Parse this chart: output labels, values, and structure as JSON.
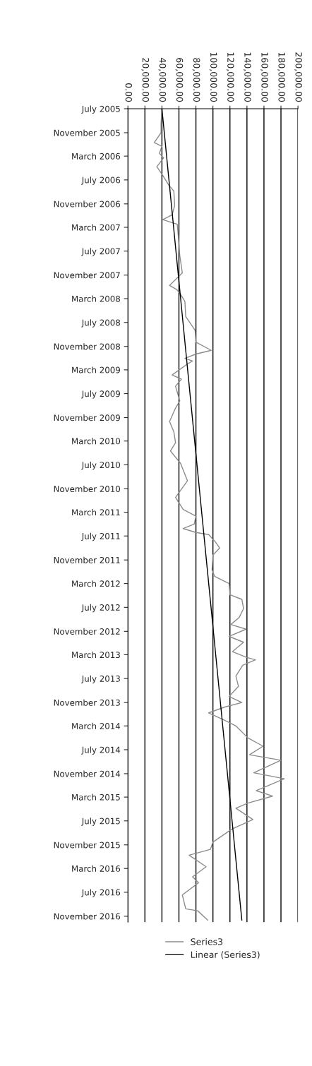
{
  "chart_data": {
    "type": "line",
    "orientation": "horizontal",
    "series": [
      {
        "name": "Series3",
        "color": "#8c8c8c",
        "x": [
          "2005-07-01",
          "2005-09-13",
          "2005-11-01",
          "2005-12-21",
          "2006-01-10",
          "2006-02-15",
          "2006-03-10",
          "2006-04-24",
          "2006-06-01",
          "2006-07-27",
          "2006-08-27",
          "2006-11-10",
          "2006-12-27",
          "2007-01-21",
          "2007-02-13",
          "2007-04-01",
          "2007-07-24",
          "2007-10-21",
          "2007-12-24",
          "2008-01-13",
          "2008-02-01",
          "2008-03-15",
          "2008-06-01",
          "2008-08-10",
          "2008-10-10",
          "2008-11-21",
          "2008-12-10",
          "2009-01-01",
          "2009-01-15",
          "2009-01-27",
          "2009-03-27",
          "2009-04-18",
          "2009-05-24",
          "2009-08-07",
          "2009-09-13",
          "2009-11-21",
          "2010-01-13",
          "2010-03-10",
          "2010-04-21",
          "2010-06-24",
          "2010-09-21",
          "2010-12-15",
          "2011-02-15",
          "2011-03-21",
          "2011-05-01",
          "2011-05-24",
          "2011-06-13",
          "2011-06-24",
          "2011-08-01",
          "2011-09-01",
          "2011-10-07",
          "2011-12-21",
          "2012-01-24",
          "2012-03-01",
          "2012-04-27",
          "2012-05-21",
          "2012-07-07",
          "2012-08-21",
          "2012-09-27",
          "2012-10-21",
          "2012-11-27",
          "2012-12-27",
          "2013-02-13",
          "2013-03-15",
          "2013-03-27",
          "2013-04-24",
          "2013-06-18",
          "2013-08-10",
          "2013-10-01",
          "2013-11-01",
          "2013-11-24",
          "2013-12-24",
          "2014-02-07",
          "2014-03-01",
          "2014-05-01",
          "2014-06-13",
          "2014-07-27",
          "2014-08-24",
          "2014-10-27",
          "2014-11-27",
          "2015-01-27",
          "2015-02-24",
          "2015-04-01",
          "2015-04-27",
          "2015-06-24",
          "2015-08-13",
          "2015-10-18",
          "2015-11-24",
          "2015-12-24",
          "2016-02-21",
          "2016-04-13",
          "2016-05-13",
          "2016-07-15",
          "2016-09-24",
          "2016-10-04",
          "2016-11-21"
        ],
        "values": [
          40000,
          39000,
          39000,
          31000,
          40000,
          37000,
          42000,
          34000,
          40000,
          48000,
          54000,
          55000,
          52000,
          41000,
          58000,
          59000,
          61000,
          64000,
          49000,
          57000,
          61000,
          67000,
          68000,
          79000,
          80000,
          98000,
          80000,
          67000,
          76000,
          71000,
          52000,
          63000,
          56000,
          61000,
          56000,
          49000,
          54000,
          56000,
          50000,
          62000,
          70000,
          56000,
          65000,
          80000,
          78000,
          65000,
          80000,
          95000,
          103000,
          108000,
          100000,
          99000,
          102000,
          119000,
          120000,
          134000,
          136000,
          131000,
          121000,
          139000,
          119000,
          136000,
          123000,
          140000,
          150000,
          135000,
          127000,
          130000,
          119000,
          134000,
          114000,
          95000,
          117000,
          127000,
          141000,
          159000,
          143000,
          180000,
          148000,
          184000,
          151000,
          170000,
          141000,
          127000,
          147000,
          122000,
          100000,
          97000,
          72000,
          92000,
          76000,
          83000,
          64000,
          68000,
          82000,
          94000
        ]
      },
      {
        "name": "Linear (Series3)",
        "color": "#000000",
        "x": [
          "2005-07-01",
          "2016-11-21"
        ],
        "values": [
          40000,
          134000
        ]
      }
    ],
    "xlim": [
      0,
      200000
    ],
    "xticks": [
      {
        "value": 0,
        "label": "0.00"
      },
      {
        "value": 20000,
        "label": "20,000.00"
      },
      {
        "value": 40000,
        "label": "40,000.00"
      },
      {
        "value": 60000,
        "label": "60,000.00"
      },
      {
        "value": 80000,
        "label": "80,000.00"
      },
      {
        "value": 100000,
        "label": "100,000.00"
      },
      {
        "value": 120000,
        "label": "120,000.00"
      },
      {
        "value": 140000,
        "label": "140,000.00"
      },
      {
        "value": 160000,
        "label": "160,000.00"
      },
      {
        "value": 180000,
        "label": "180,000.00"
      },
      {
        "value": 200000,
        "label": "200,000.00"
      }
    ],
    "ylim": [
      "2016-12-01",
      "2005-07-01"
    ],
    "yticks": [
      {
        "value": "2005-07",
        "label": "July 2005"
      },
      {
        "value": "2005-11",
        "label": "November 2005"
      },
      {
        "value": "2006-03",
        "label": "March 2006"
      },
      {
        "value": "2006-07",
        "label": "July 2006"
      },
      {
        "value": "2006-11",
        "label": "November 2006"
      },
      {
        "value": "2007-03",
        "label": "March 2007"
      },
      {
        "value": "2007-07",
        "label": "July 2007"
      },
      {
        "value": "2007-11",
        "label": "November 2007"
      },
      {
        "value": "2008-03",
        "label": "March 2008"
      },
      {
        "value": "2008-07",
        "label": "July 2008"
      },
      {
        "value": "2008-11",
        "label": "November 2008"
      },
      {
        "value": "2009-03",
        "label": "March 2009"
      },
      {
        "value": "2009-07",
        "label": "July 2009"
      },
      {
        "value": "2009-11",
        "label": "November 2009"
      },
      {
        "value": "2010-03",
        "label": "March 2010"
      },
      {
        "value": "2010-07",
        "label": "July 2010"
      },
      {
        "value": "2010-11",
        "label": "November 2010"
      },
      {
        "value": "2011-03",
        "label": "March 2011"
      },
      {
        "value": "2011-07",
        "label": "July 2011"
      },
      {
        "value": "2011-11",
        "label": "November 2011"
      },
      {
        "value": "2012-03",
        "label": "March 2012"
      },
      {
        "value": "2012-07",
        "label": "July 2012"
      },
      {
        "value": "2012-11",
        "label": "November 2012"
      },
      {
        "value": "2013-03",
        "label": "March 2013"
      },
      {
        "value": "2013-07",
        "label": "July 2013"
      },
      {
        "value": "2013-11",
        "label": "November 2013"
      },
      {
        "value": "2014-03",
        "label": "March 2014"
      },
      {
        "value": "2014-07",
        "label": "July 2014"
      },
      {
        "value": "2014-11",
        "label": "November 2014"
      },
      {
        "value": "2015-03",
        "label": "March 2015"
      },
      {
        "value": "2015-07",
        "label": "July 2015"
      },
      {
        "value": "2015-11",
        "label": "November 2015"
      },
      {
        "value": "2016-03",
        "label": "March 2016"
      },
      {
        "value": "2016-07",
        "label": "July 2016"
      },
      {
        "value": "2016-11",
        "label": "November 2016"
      }
    ],
    "grid": "x",
    "legend": "bottom",
    "line_style": "solid",
    "marker": "none"
  }
}
